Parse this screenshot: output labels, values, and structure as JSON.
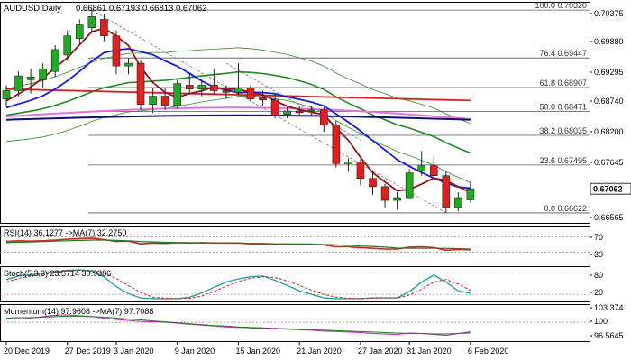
{
  "chart_data": [
    {
      "type": "candlestick",
      "symbol_label": "AUDUSD,Daily",
      "ohlc_label": "0.66861 0.67193 0.66813 0.67062",
      "ylim": [
        0.6644,
        0.7047
      ],
      "y_ticks": [
        "0.70375",
        "0.69880",
        "0.69295",
        "0.68740",
        "0.68200",
        "0.67645",
        "0.66565"
      ],
      "last_price_label": "0.67062",
      "x_labels": [
        {
          "i": 0,
          "label": "20 Dec 2019"
        },
        {
          "i": 5,
          "label": "27 Dec 2019"
        },
        {
          "i": 9,
          "label": "3 Jan 2020"
        },
        {
          "i": 14,
          "label": "9 Jan 2020"
        },
        {
          "i": 19,
          "label": "15 Jan 2020"
        },
        {
          "i": 24,
          "label": "21 Jan 2020"
        },
        {
          "i": 29,
          "label": "27 Jan 2020"
        },
        {
          "i": 33,
          "label": "31 Jan 2020"
        },
        {
          "i": 38,
          "label": "6 Feb 2020"
        }
      ],
      "fib_levels": [
        {
          "label": "100.0 0.70320",
          "value": 0.7032
        },
        {
          "label": "76.4 0.69447",
          "value": 0.69447
        },
        {
          "label": "61.8 0.68907",
          "value": 0.68907
        },
        {
          "label": "50.0 0.68471",
          "value": 0.68471
        },
        {
          "label": "38.2 0.68035",
          "value": 0.68035
        },
        {
          "label": "23.6 0.67495",
          "value": 0.67495
        },
        {
          "label": "0.0 0.66622",
          "value": 0.66622
        }
      ],
      "candles": [
        {
          "o": 0.687,
          "h": 0.6895,
          "l": 0.6855,
          "c": 0.6885
        },
        {
          "o": 0.6885,
          "h": 0.692,
          "l": 0.6875,
          "c": 0.6912
        },
        {
          "o": 0.6905,
          "h": 0.6925,
          "l": 0.688,
          "c": 0.691
        },
        {
          "o": 0.6905,
          "h": 0.6935,
          "l": 0.689,
          "c": 0.6925
        },
        {
          "o": 0.692,
          "h": 0.6968,
          "l": 0.691,
          "c": 0.696
        },
        {
          "o": 0.695,
          "h": 0.6995,
          "l": 0.694,
          "c": 0.6985
        },
        {
          "o": 0.698,
          "h": 0.7015,
          "l": 0.697,
          "c": 0.7005
        },
        {
          "o": 0.7,
          "h": 0.7032,
          "l": 0.699,
          "c": 0.702
        },
        {
          "o": 0.7015,
          "h": 0.7025,
          "l": 0.6975,
          "c": 0.6985
        },
        {
          "o": 0.6985,
          "h": 0.6995,
          "l": 0.6915,
          "c": 0.693
        },
        {
          "o": 0.693,
          "h": 0.6945,
          "l": 0.6915,
          "c": 0.6935
        },
        {
          "o": 0.6935,
          "h": 0.694,
          "l": 0.685,
          "c": 0.686
        },
        {
          "o": 0.686,
          "h": 0.689,
          "l": 0.6845,
          "c": 0.6875
        },
        {
          "o": 0.6875,
          "h": 0.689,
          "l": 0.685,
          "c": 0.6858
        },
        {
          "o": 0.6858,
          "h": 0.6905,
          "l": 0.6852,
          "c": 0.6898
        },
        {
          "o": 0.6895,
          "h": 0.6915,
          "l": 0.688,
          "c": 0.6888
        },
        {
          "o": 0.6888,
          "h": 0.6905,
          "l": 0.6875,
          "c": 0.6895
        },
        {
          "o": 0.6895,
          "h": 0.6925,
          "l": 0.688,
          "c": 0.6885
        },
        {
          "o": 0.6885,
          "h": 0.6895,
          "l": 0.687,
          "c": 0.6882
        },
        {
          "o": 0.6882,
          "h": 0.6935,
          "l": 0.6878,
          "c": 0.689
        },
        {
          "o": 0.689,
          "h": 0.6895,
          "l": 0.6865,
          "c": 0.687
        },
        {
          "o": 0.6872,
          "h": 0.6885,
          "l": 0.6858,
          "c": 0.6868
        },
        {
          "o": 0.6868,
          "h": 0.688,
          "l": 0.6835,
          "c": 0.684
        },
        {
          "o": 0.6842,
          "h": 0.6855,
          "l": 0.6835,
          "c": 0.6848
        },
        {
          "o": 0.6848,
          "h": 0.6858,
          "l": 0.6838,
          "c": 0.6845
        },
        {
          "o": 0.6848,
          "h": 0.6858,
          "l": 0.684,
          "c": 0.685
        },
        {
          "o": 0.685,
          "h": 0.6855,
          "l": 0.681,
          "c": 0.6822
        },
        {
          "o": 0.6822,
          "h": 0.683,
          "l": 0.6745,
          "c": 0.6752
        },
        {
          "o": 0.6752,
          "h": 0.6762,
          "l": 0.6738,
          "c": 0.6755
        },
        {
          "o": 0.6755,
          "h": 0.676,
          "l": 0.6712,
          "c": 0.6725
        },
        {
          "o": 0.6725,
          "h": 0.674,
          "l": 0.6695,
          "c": 0.671
        },
        {
          "o": 0.671,
          "h": 0.6715,
          "l": 0.6672,
          "c": 0.6685
        },
        {
          "o": 0.6685,
          "h": 0.67,
          "l": 0.6668,
          "c": 0.669
        },
        {
          "o": 0.669,
          "h": 0.6742,
          "l": 0.6688,
          "c": 0.6735
        },
        {
          "o": 0.6738,
          "h": 0.6775,
          "l": 0.673,
          "c": 0.6748
        },
        {
          "o": 0.6748,
          "h": 0.6765,
          "l": 0.6725,
          "c": 0.673
        },
        {
          "o": 0.673,
          "h": 0.6738,
          "l": 0.6662,
          "c": 0.6672
        },
        {
          "o": 0.6672,
          "h": 0.67,
          "l": 0.6665,
          "c": 0.669
        },
        {
          "o": 0.6686,
          "h": 0.6719,
          "l": 0.6681,
          "c": 0.67062
        }
      ]
    },
    {
      "type": "line",
      "label": "RSI(14) 36.1277   ->MA(7) 32.2750",
      "ylim": [
        0,
        100
      ],
      "ticks": [
        "70",
        "30"
      ],
      "levels": [
        70,
        30
      ],
      "series": [
        {
          "values": [
            58,
            60,
            59,
            60,
            62,
            64,
            66,
            67,
            63,
            58,
            59,
            52,
            54,
            53,
            55,
            54,
            55,
            54,
            54,
            54,
            52,
            51,
            50,
            51,
            51,
            51,
            49,
            44,
            44,
            42,
            40,
            38,
            38,
            43,
            44,
            42,
            35,
            37,
            36.13
          ]
        },
        {
          "values": [
            55,
            56,
            57,
            58,
            59,
            60,
            61,
            62,
            62,
            61,
            60,
            58,
            57,
            56,
            55,
            55,
            54,
            54,
            54,
            54,
            53,
            53,
            52,
            52,
            51,
            51,
            50,
            49,
            48,
            46,
            45,
            43,
            41,
            40,
            40,
            40,
            40,
            39,
            38
          ]
        }
      ]
    },
    {
      "type": "line",
      "label": "Stoch(5,3,3) 23.5714 30.9386",
      "ylim": [
        0,
        100
      ],
      "ticks": [
        "80",
        "20"
      ],
      "levels": [
        80,
        20
      ],
      "series": [
        {
          "values": [
            62,
            72,
            76,
            80,
            84,
            88,
            90,
            86,
            70,
            42,
            22,
            10,
            8,
            8,
            8,
            12,
            24,
            40,
            55,
            64,
            70,
            72,
            60,
            45,
            30,
            20,
            10,
            8,
            8,
            8,
            10,
            10,
            10,
            28,
            55,
            75,
            55,
            30,
            23.57
          ]
        },
        {
          "values": [
            55,
            65,
            72,
            77,
            82,
            86,
            89,
            88,
            80,
            65,
            45,
            25,
            12,
            9,
            8,
            9,
            15,
            28,
            43,
            56,
            66,
            70,
            68,
            58,
            45,
            32,
            20,
            12,
            9,
            8,
            9,
            10,
            10,
            18,
            35,
            55,
            62,
            50,
            30.94
          ]
        }
      ]
    },
    {
      "type": "line",
      "label": "Momentum(14) 97.9608  ->MA(7) 97.7088",
      "ylim": [
        95.95,
        103.9
      ],
      "ticks": [
        "103.374",
        "100",
        "96.5645"
      ],
      "levels": [
        100
      ],
      "series": [
        {
          "values": [
            100.8,
            101.0,
            100.9,
            101.2,
            101.5,
            101.6,
            101.4,
            101.2,
            100.9,
            100.6,
            100.4,
            100.2,
            100.1,
            100.0,
            99.8,
            99.6,
            99.4,
            99.2,
            99.0,
            98.9,
            98.8,
            98.7,
            98.6,
            98.5,
            98.4,
            98.3,
            98.1,
            98.0,
            97.9,
            97.8,
            97.6,
            97.5,
            97.4,
            97.7,
            97.6,
            97.4,
            97.2,
            97.6,
            97.96
          ]
        },
        {
          "values": [
            100.9,
            101.0,
            101.0,
            101.1,
            101.2,
            101.3,
            101.3,
            101.2,
            101.1,
            100.9,
            100.7,
            100.5,
            100.3,
            100.1,
            99.9,
            99.7,
            99.5,
            99.3,
            99.2,
            99.0,
            98.9,
            98.8,
            98.7,
            98.6,
            98.5,
            98.4,
            98.3,
            98.2,
            98.1,
            98.0,
            97.9,
            97.8,
            97.7,
            97.6,
            97.6,
            97.5,
            97.5,
            97.6,
            97.71
          ]
        }
      ]
    }
  ]
}
